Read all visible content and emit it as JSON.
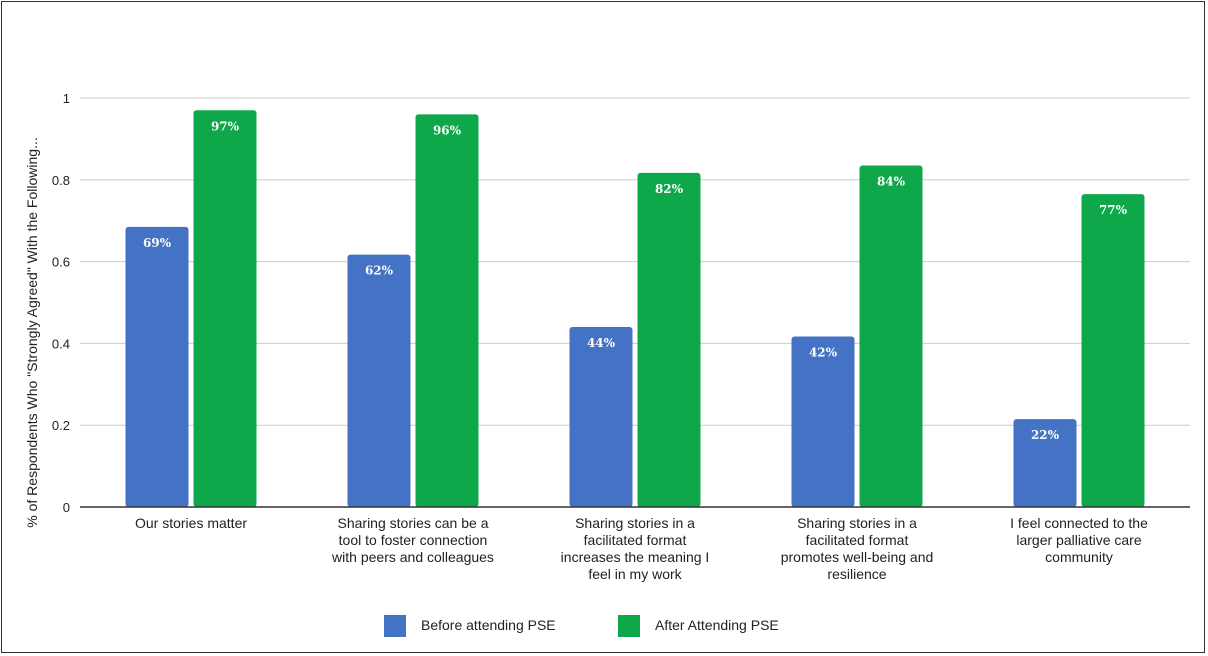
{
  "chart_data": {
    "type": "bar",
    "title": "",
    "xlabel": "",
    "ylabel": "% of Respondents Who \"Strongly Agreed\" With the Following...",
    "ylim": [
      0,
      1
    ],
    "yticks": [
      "0",
      "0.2",
      "0.4",
      "0.6",
      "0.8",
      "1"
    ],
    "categories": [
      [
        "Our stories matter"
      ],
      [
        "Sharing stories can be a",
        "tool to foster connection",
        "with peers and colleagues"
      ],
      [
        "Sharing stories in a",
        "facilitated format",
        "increases the meaning I",
        "feel in my work"
      ],
      [
        "Sharing stories in a",
        "facilitated format",
        "promotes well-being and",
        "resilience"
      ],
      [
        "I feel connected to the",
        "larger palliative care",
        "community"
      ]
    ],
    "series": [
      {
        "name": "Before attending PSE",
        "color": "#4472c4",
        "values": [
          0.685,
          0.617,
          0.44,
          0.417,
          0.215
        ],
        "labels": [
          "69%",
          "62%",
          "44%",
          "42%",
          "22%"
        ]
      },
      {
        "name": "After Attending PSE",
        "color": "#0ea84a",
        "values": [
          0.97,
          0.96,
          0.817,
          0.835,
          0.765
        ],
        "labels": [
          "97%",
          "96%",
          "82%",
          "84%",
          "77%"
        ]
      }
    ],
    "grid": true,
    "legend_position": "bottom"
  }
}
